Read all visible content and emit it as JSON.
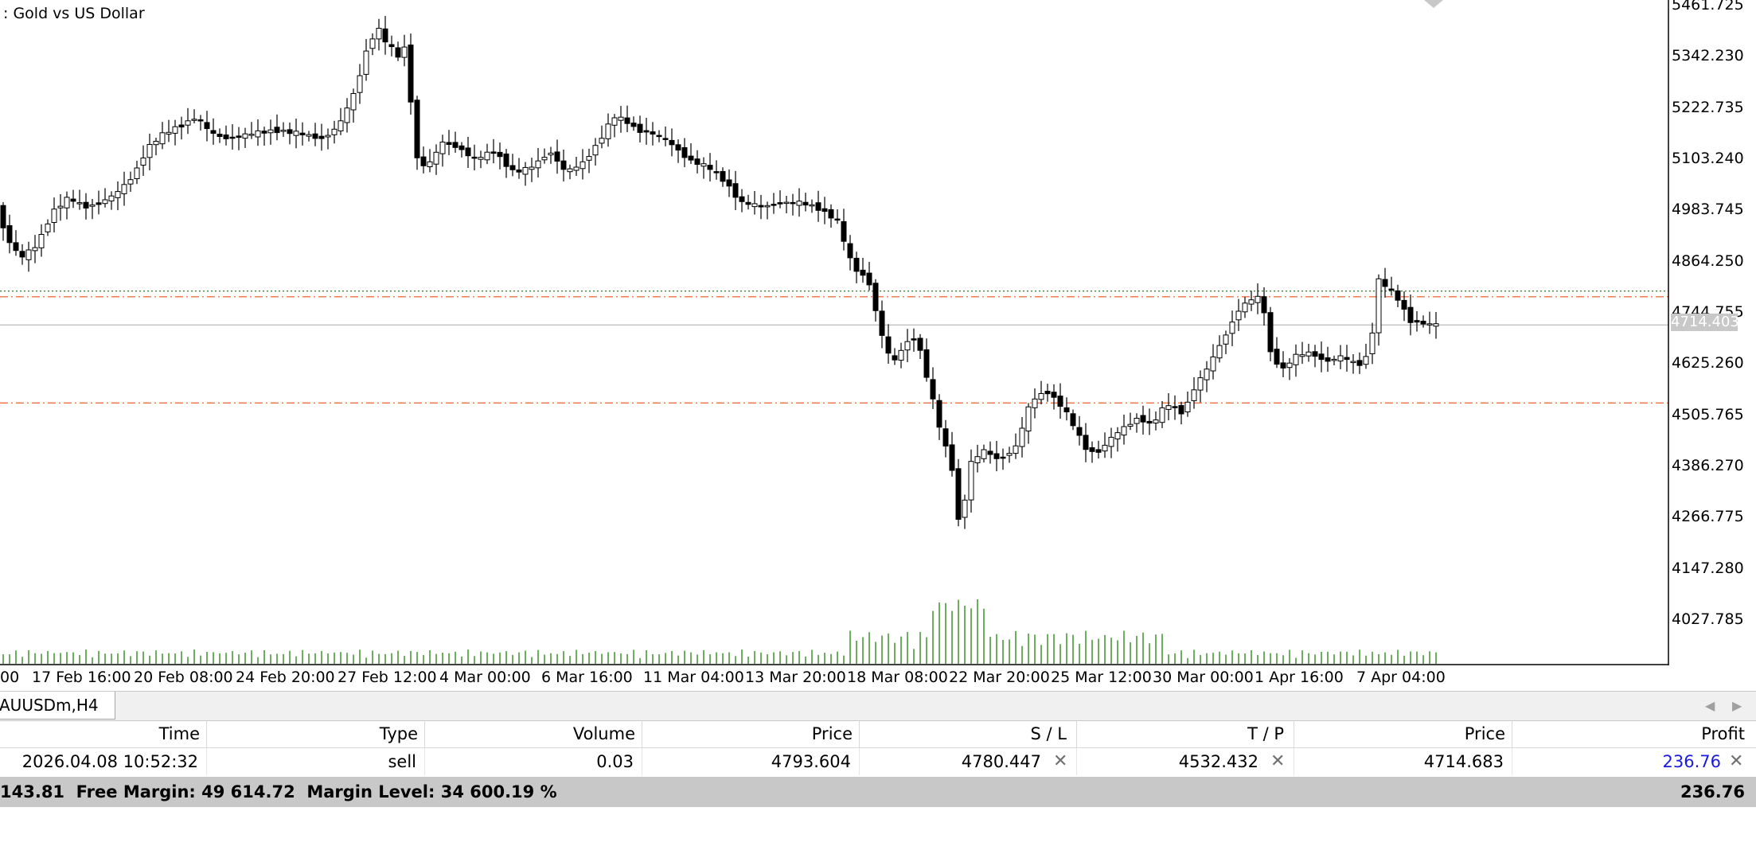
{
  "chart": {
    "title": "Gold vs US Dollar",
    "symbol_tab": "AUUSDm,H4",
    "price_ticks": [
      "5461.725",
      "5342.230",
      "5222.735",
      "5103.240",
      "4983.745",
      "4864.250",
      "4744.755",
      "4625.260",
      "4505.765",
      "4386.270",
      "4266.775",
      "4147.280",
      "4027.785"
    ],
    "time_ticks": [
      "00",
      "17 Feb 16:00",
      "20 Feb 08:00",
      "24 Feb 20:00",
      "27 Feb 12:00",
      "4 Mar 00:00",
      "6 Mar 16:00",
      "11 Mar 04:00",
      "13 Mar 20:00",
      "18 Mar 08:00",
      "22 Mar 20:00",
      "25 Mar 12:00",
      "30 Mar 00:00",
      "1 Apr 16:00",
      "7 Apr 04:00"
    ],
    "current_price": "4714.403",
    "colors": {
      "bull_fill": "#ffffff",
      "bear_fill": "#000000",
      "volume": "#4a9a3c",
      "sl_tp_line": "#f07040",
      "entry_line": "#3a8a3a",
      "bid_line": "#c0c0c0"
    },
    "levels": {
      "entry_price": 4793.604,
      "stop_loss": 4780.447,
      "take_profit": 4532.432,
      "bid": 4714.403
    }
  },
  "tabs": {
    "scroll_left": "◀",
    "scroll_right": "▶"
  },
  "table": {
    "headers": [
      "Time",
      "Type",
      "Volume",
      "Price",
      "S / L",
      "T / P",
      "Price",
      "Profit"
    ],
    "rows": [
      {
        "time": "2026.04.08 10:52:32",
        "type": "sell",
        "volume": "0.03",
        "price": "4793.604",
        "sl": "4780.447",
        "tp": "4532.432",
        "current_price": "4714.683",
        "profit": "236.76"
      }
    ],
    "close_icon": "✕"
  },
  "summary": {
    "text": "143.81  Free Margin: 49 614.72  Margin Level: 34 600.19 %",
    "profit": "236.76"
  }
}
